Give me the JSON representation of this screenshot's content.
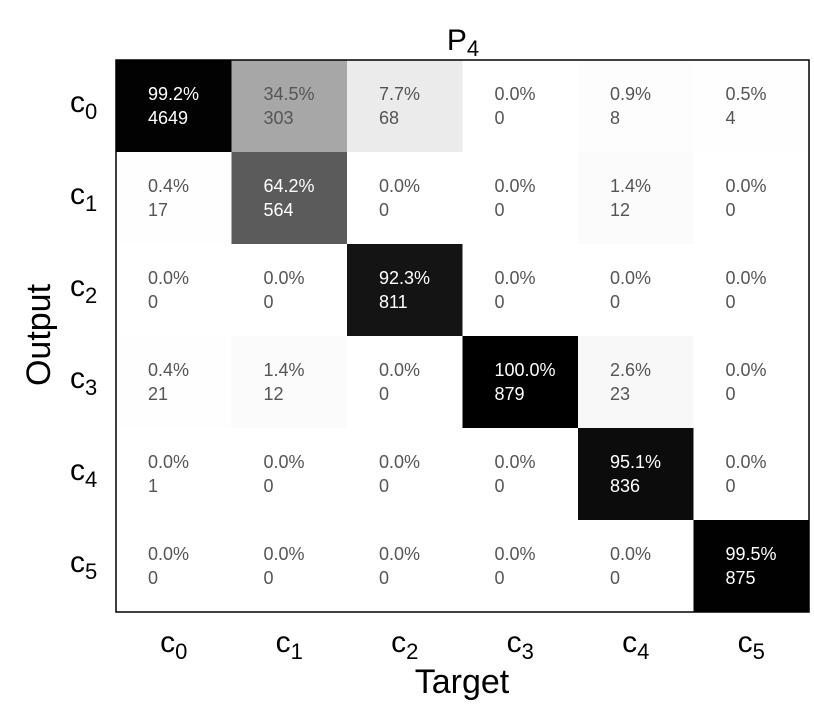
{
  "chart_data": {
    "type": "heatmap",
    "title": "P",
    "title_subscript": "4",
    "xlabel": "Target",
    "ylabel": "Output",
    "row_labels": [
      {
        "base": "c",
        "sub": "0"
      },
      {
        "base": "c",
        "sub": "1"
      },
      {
        "base": "c",
        "sub": "2"
      },
      {
        "base": "c",
        "sub": "3"
      },
      {
        "base": "c",
        "sub": "4"
      },
      {
        "base": "c",
        "sub": "5"
      }
    ],
    "col_labels": [
      {
        "base": "c",
        "sub": "0"
      },
      {
        "base": "c",
        "sub": "1"
      },
      {
        "base": "c",
        "sub": "2"
      },
      {
        "base": "c",
        "sub": "3"
      },
      {
        "base": "c",
        "sub": "4"
      },
      {
        "base": "c",
        "sub": "5"
      }
    ],
    "percent_labels": [
      [
        "99.2%",
        "34.5%",
        "7.7%",
        "0.0%",
        "0.9%",
        "0.5%"
      ],
      [
        "0.4%",
        "64.2%",
        "0.0%",
        "0.0%",
        "1.4%",
        "0.0%"
      ],
      [
        "0.0%",
        "0.0%",
        "92.3%",
        "0.0%",
        "0.0%",
        "0.0%"
      ],
      [
        "0.4%",
        "1.4%",
        "0.0%",
        "100.0%",
        "2.6%",
        "0.0%"
      ],
      [
        "0.0%",
        "0.0%",
        "0.0%",
        "0.0%",
        "95.1%",
        "0.0%"
      ],
      [
        "0.0%",
        "0.0%",
        "0.0%",
        "0.0%",
        "0.0%",
        "99.5%"
      ]
    ],
    "counts": [
      [
        4649,
        303,
        68,
        0,
        8,
        4
      ],
      [
        17,
        564,
        0,
        0,
        12,
        0
      ],
      [
        0,
        0,
        811,
        0,
        0,
        0
      ],
      [
        21,
        12,
        0,
        879,
        23,
        0
      ],
      [
        1,
        0,
        0,
        0,
        836,
        0
      ],
      [
        0,
        0,
        0,
        0,
        0,
        875
      ]
    ],
    "colormap": "gray_reversed",
    "value_range": [
      0,
      100
    ]
  }
}
